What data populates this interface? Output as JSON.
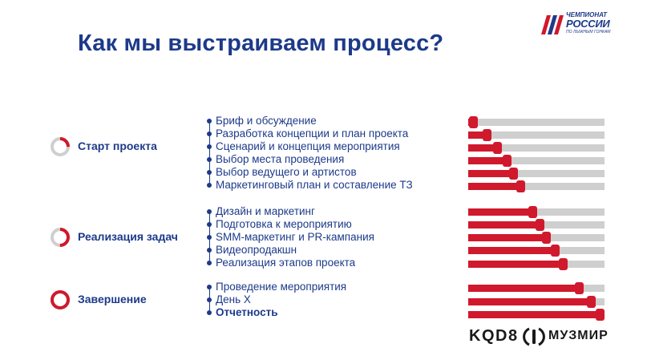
{
  "slide": {
    "title": "Как мы выстраиваем процесс?",
    "logo": {
      "line1": "ЧЕМПИОНАТ",
      "line2": "РОССИИ",
      "line3": "ПО ЛЫЖНЫМ ГОНКАМ"
    },
    "colors": {
      "accent": "#d0192c",
      "text": "#1d3a8a",
      "track": "#cfcfcf"
    }
  },
  "sections": [
    {
      "label": "Старт проекта",
      "progress": 0.25
    },
    {
      "label": "Реализация задач",
      "progress": 0.5
    },
    {
      "label": "Завершение",
      "progress": 1.0
    }
  ],
  "items": [
    {
      "text": "Бриф и обсуждение",
      "progress": 0.05,
      "bold": false
    },
    {
      "text": "Разработка концепции и план проекта",
      "progress": 0.15,
      "bold": false
    },
    {
      "text": "Сценарий и концепция мероприятия",
      "progress": 0.23,
      "bold": false
    },
    {
      "text": "Выбор места проведения",
      "progress": 0.3,
      "bold": false
    },
    {
      "text": "Выбор ведущего и артистов",
      "progress": 0.35,
      "bold": false
    },
    {
      "text": "Маркетинговый план и составление ТЗ",
      "progress": 0.4,
      "bold": false
    },
    {
      "text": "Дизайн и маркетинг",
      "progress": 0.49,
      "bold": false
    },
    {
      "text": "Подготовка к мероприятию",
      "progress": 0.54,
      "bold": false
    },
    {
      "text": "SMM-маркетинг и PR-кампания",
      "progress": 0.59,
      "bold": false
    },
    {
      "text": "Видеопродакшн",
      "progress": 0.65,
      "bold": false
    },
    {
      "text": "Реализация этапов проекта",
      "progress": 0.71,
      "bold": false
    },
    {
      "text": "Проведение мероприятия",
      "progress": 0.83,
      "bold": false
    },
    {
      "text": "День Х",
      "progress": 0.92,
      "bold": false
    },
    {
      "text": "Отчетность",
      "progress": 1.0,
      "bold": true
    }
  ],
  "footer": {
    "brand1": "KQD8",
    "brand2": "МУЗМИР"
  }
}
